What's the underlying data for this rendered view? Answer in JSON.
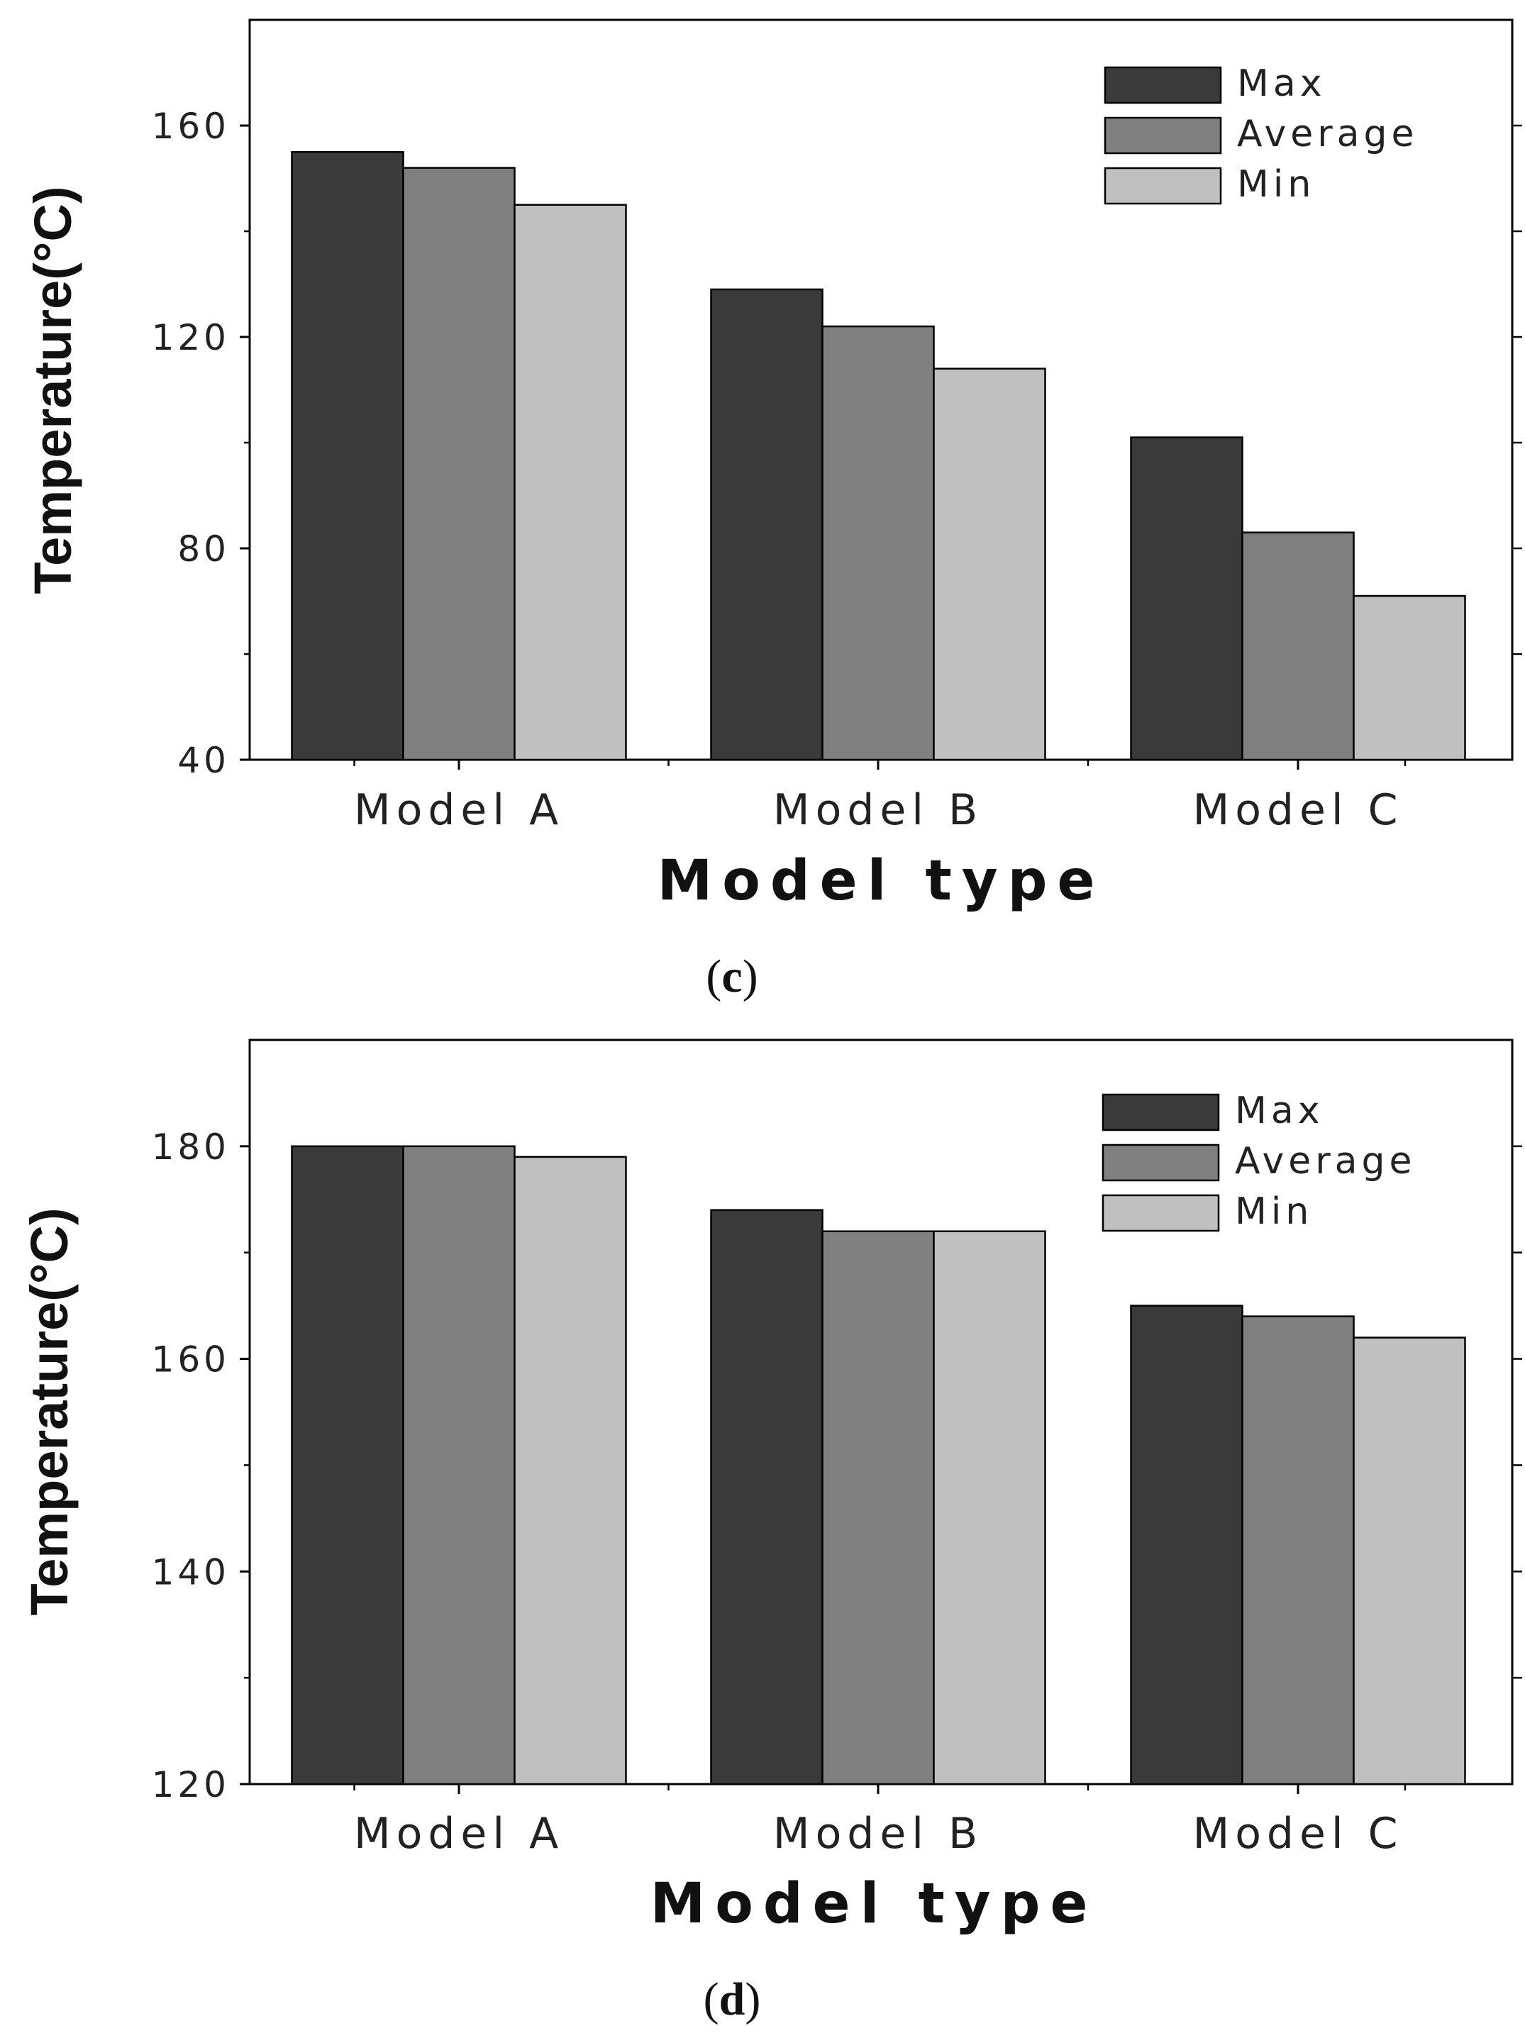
{
  "chart_data": [
    {
      "type": "bar",
      "panel_label": "c",
      "xlabel": "Model type",
      "ylabel": "Temperature(°C)",
      "categories": [
        "Model A",
        "Model B",
        "Model C"
      ],
      "ylim": [
        40,
        180
      ],
      "yticks": [
        40,
        80,
        120,
        160
      ],
      "series": [
        {
          "name": "Max",
          "color": "#3a3a3a",
          "values": [
            155,
            129,
            101
          ]
        },
        {
          "name": "Average",
          "color": "#808080",
          "values": [
            152,
            122,
            83
          ]
        },
        {
          "name": "Min",
          "color": "#c0c0c0",
          "values": [
            145,
            114,
            71
          ]
        }
      ],
      "legend_position": "top-right"
    },
    {
      "type": "bar",
      "panel_label": "d",
      "xlabel": "Model type",
      "ylabel": "Temperature(°C)",
      "categories": [
        "Model A",
        "Model B",
        "Model C"
      ],
      "ylim": [
        120,
        190
      ],
      "yticks": [
        120,
        140,
        160,
        180
      ],
      "series": [
        {
          "name": "Max",
          "color": "#3a3a3a",
          "values": [
            180,
            174,
            165
          ]
        },
        {
          "name": "Average",
          "color": "#808080",
          "values": [
            180,
            172,
            164
          ]
        },
        {
          "name": "Min",
          "color": "#c0c0c0",
          "values": [
            179,
            172,
            162
          ]
        }
      ],
      "legend_position": "top-right"
    }
  ]
}
